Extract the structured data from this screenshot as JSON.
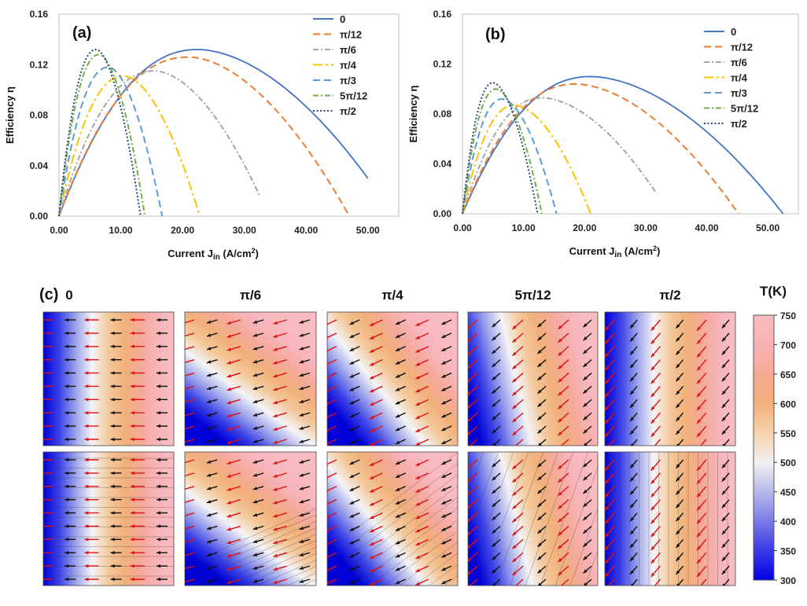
{
  "colors": {
    "series": [
      "#4472C4",
      "#ED7D31",
      "#A5A5A5",
      "#FFC000",
      "#5B9BD5",
      "#70AD47",
      "#264478"
    ],
    "cmap": [
      "#0000e6",
      "#3a3ae6",
      "#7a7ae8",
      "#b7b8ea",
      "#f1f1f3",
      "#f7d2ac",
      "#f2b07a",
      "#f6a992",
      "#f7b2b5",
      "#f8bcc0"
    ],
    "arrow_red": "#e01010",
    "arrow_black": "#111111"
  },
  "chart_data": [
    {
      "type": "line",
      "panel_label": "(a)",
      "xlabel": "Current J",
      "xlabel_sub": "in",
      "xlabel_unit": "(A/cm",
      "xlabel_unit_sup": "2",
      "xlabel_unit_end": ")",
      "ylabel": "Efficiency η",
      "xlim": [
        0,
        55
      ],
      "ylim": [
        0,
        0.16
      ],
      "xticks": [
        "0.00",
        "10.00",
        "20.00",
        "30.00",
        "40.00",
        "50.00"
      ],
      "yticks": [
        "0.00",
        "0.04",
        "0.08",
        "0.12",
        "0.16"
      ],
      "legend_position": "top-right",
      "series": [
        {
          "name": "0",
          "dash": "solid",
          "peak_x": 22.5,
          "peak_y": 0.132,
          "x_end": 50.0
        },
        {
          "name": "π/12",
          "dash": "dash",
          "peak_x": 21.0,
          "peak_y": 0.126,
          "x_end": 47.0
        },
        {
          "name": "π/6",
          "dash": "dashdot",
          "peak_x": 15.5,
          "peak_y": 0.115,
          "x_end": 32.5
        },
        {
          "name": "π/4",
          "dash": "longdashdot",
          "peak_x": 10.5,
          "peak_y": 0.111,
          "x_end": 22.8
        },
        {
          "name": "π/3",
          "dash": "dash",
          "peak_x": 8.0,
          "peak_y": 0.118,
          "x_end": 16.7
        },
        {
          "name": "5π/12",
          "dash": "dashdot",
          "peak_x": 6.5,
          "peak_y": 0.128,
          "x_end": 13.9
        },
        {
          "name": "π/2",
          "dash": "dot",
          "peak_x": 6.0,
          "peak_y": 0.132,
          "x_end": 13.2
        }
      ]
    },
    {
      "type": "line",
      "panel_label": "(b)",
      "xlabel": "Current J",
      "xlabel_sub": "in",
      "xlabel_unit": "(A/cm",
      "xlabel_unit_sup": "2",
      "xlabel_unit_end": ")",
      "ylabel": "Efficiency η",
      "xlim": [
        0,
        55
      ],
      "ylim": [
        0,
        0.16
      ],
      "xticks": [
        "0.00",
        "10.00",
        "20.00",
        "30.00",
        "40.00",
        "50.00"
      ],
      "yticks": [
        "0.00",
        "0.04",
        "0.08",
        "0.12",
        "0.16"
      ],
      "legend_position": "top-right",
      "series": [
        {
          "name": "0",
          "dash": "solid",
          "peak_x": 21.0,
          "peak_y": 0.11,
          "x_end": 52.5
        },
        {
          "name": "π/12",
          "dash": "dash",
          "peak_x": 18.5,
          "peak_y": 0.104,
          "x_end": 45.2
        },
        {
          "name": "π/6",
          "dash": "dashdot",
          "peak_x": 13.0,
          "peak_y": 0.093,
          "x_end": 31.8
        },
        {
          "name": "π/4",
          "dash": "longdashdot",
          "peak_x": 8.5,
          "peak_y": 0.087,
          "x_end": 21.0
        },
        {
          "name": "π/3",
          "dash": "dash",
          "peak_x": 6.5,
          "peak_y": 0.092,
          "x_end": 15.4
        },
        {
          "name": "5π/12",
          "dash": "dashdot",
          "peak_x": 5.5,
          "peak_y": 0.1,
          "x_end": 13.0
        },
        {
          "name": "π/2",
          "dash": "dot",
          "peak_x": 5.0,
          "peak_y": 0.105,
          "x_end": 12.3
        }
      ]
    },
    {
      "type": "heatmap",
      "panel_label": "(c)",
      "column_titles": [
        "0",
        "π/6",
        "π/4",
        "5π/12",
        "π/2"
      ],
      "angles_fraction_of_pi": [
        0,
        0.1667,
        0.25,
        0.4167,
        0.5
      ],
      "rows": 2,
      "colorbar_label": "T(K)",
      "colorbar_range": [
        300,
        750
      ],
      "colorbar_ticks": [
        "750",
        "700",
        "650",
        "600",
        "550",
        "500",
        "450",
        "400",
        "350",
        "300"
      ]
    }
  ]
}
